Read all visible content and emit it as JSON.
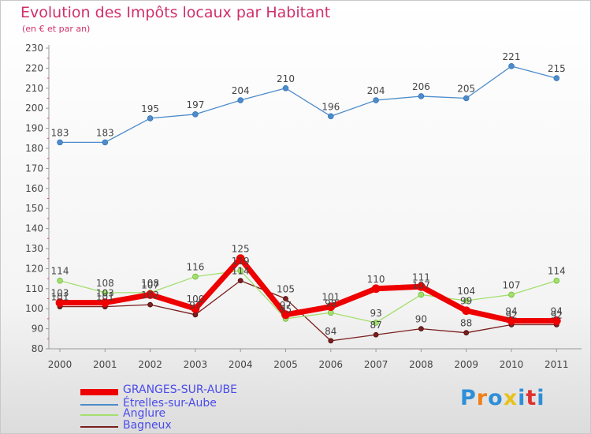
{
  "header": {
    "title": "Evolution des Impôts locaux par Habitant",
    "subtitle": "(en € et par an)"
  },
  "chart_data": {
    "type": "line",
    "title": "Evolution des Impôts locaux par Habitant",
    "subtitle": "(en € et par an)",
    "xlabel": "",
    "ylabel": "",
    "categories": [
      "2000",
      "2001",
      "2002",
      "2003",
      "2004",
      "2005",
      "2006",
      "2007",
      "2008",
      "2009",
      "2010",
      "2011"
    ],
    "ylim": [
      80,
      230
    ],
    "yticks": [
      80,
      90,
      100,
      110,
      120,
      130,
      140,
      150,
      160,
      170,
      180,
      190,
      200,
      210,
      220,
      230
    ],
    "grid": false,
    "legend_position": "bottom-left",
    "series": [
      {
        "name": "GRANGES-SUR-AUBE",
        "color": "#ee0000",
        "values": [
          103,
          103,
          107,
          100,
          125,
          97,
          101,
          110,
          111,
          99,
          94,
          94
        ],
        "labels": [
          "103",
          "103",
          "107",
          "100",
          "125",
          "97",
          "101",
          "110",
          "111",
          "99",
          "94",
          "94"
        ]
      },
      {
        "name": "Étrelles-sur-Aube",
        "color": "#4d8ccb",
        "values": [
          183,
          183,
          195,
          197,
          204,
          210,
          196,
          204,
          206,
          205,
          221,
          215
        ],
        "labels": [
          "183",
          "183",
          "195",
          "197",
          "204",
          "210",
          "196",
          "204",
          "206",
          "205",
          "221",
          "215"
        ]
      },
      {
        "name": "Anglure",
        "color": "#a4df6e",
        "values": [
          114,
          108,
          108,
          116,
          119,
          95,
          98,
          93,
          107,
          104,
          107,
          114
        ],
        "labels": [
          "114",
          "108",
          "108",
          "116",
          "119",
          "95",
          "98",
          "93",
          "107",
          "104",
          "107",
          "114"
        ]
      },
      {
        "name": "Bagneux",
        "color": "#7b1e1e",
        "values": [
          101,
          101,
          102,
          97,
          114,
          105,
          84,
          87,
          90,
          88,
          92,
          92
        ],
        "labels": [
          "101",
          "101",
          "102",
          "97",
          "114",
          "105",
          "84",
          "87",
          "90",
          "88",
          "92",
          "92"
        ]
      }
    ]
  },
  "legend": [
    {
      "label": "GRANGES-SUR-AUBE",
      "color": "#ee0000",
      "text_color": "#4b4bea"
    },
    {
      "label": "Étrelles-sur-Aube",
      "color": "#4d8ccb",
      "text_color": "#4b4bea"
    },
    {
      "label": "Anglure",
      "color": "#a4df6e",
      "text_color": "#4b4bea"
    },
    {
      "label": "Bagneux",
      "color": "#7b1e1e",
      "text_color": "#4b4bea"
    }
  ],
  "logo": {
    "text": "Proxiti",
    "letter_colors": [
      "#2e8fd8",
      "#f07f18",
      "#2e8fd8",
      "#e8c21c",
      "#2e8fd8",
      "#e03030",
      "#2e8fd8"
    ]
  }
}
